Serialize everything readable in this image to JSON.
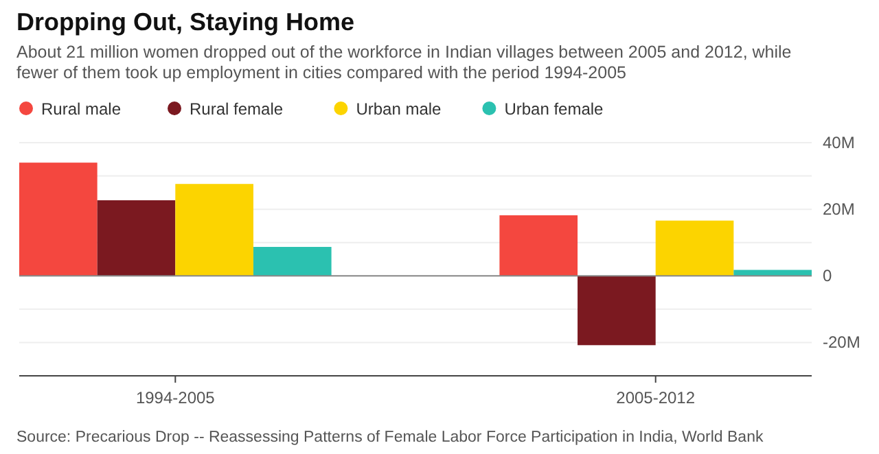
{
  "chart_data": {
    "type": "bar",
    "title": "Dropping Out, Staying Home",
    "subtitle": "About 21 million women dropped out of the workforce in Indian villages between 2005 and 2012, while fewer of them took up employment in cities compared with the period 1994-2005",
    "categories": [
      "1994-2005",
      "2005-2012"
    ],
    "series": [
      {
        "name": "Rural male",
        "color": "#f4473f",
        "values": [
          34,
          18.2
        ]
      },
      {
        "name": "Rural female",
        "color": "#7b1920",
        "values": [
          22.7,
          -20.8
        ]
      },
      {
        "name": "Urban male",
        "color": "#fcd400",
        "values": [
          27.6,
          16.6
        ]
      },
      {
        "name": "Urban female",
        "color": "#2bc1b0",
        "values": [
          8.7,
          1.8
        ]
      }
    ],
    "ylim": [
      -30,
      40
    ],
    "yticks": [
      {
        "value": -30,
        "label": null
      },
      {
        "value": -20,
        "label": "-20M"
      },
      {
        "value": -10,
        "label": null
      },
      {
        "value": 0,
        "label": "0"
      },
      {
        "value": 10,
        "label": null
      },
      {
        "value": 20,
        "label": "20M"
      },
      {
        "value": 30,
        "label": null
      },
      {
        "value": 40,
        "label": "40M"
      }
    ],
    "grid": "y",
    "legend": "top left",
    "annotations": [
      "Source: Precarious Drop -- Reassessing Patterns of Female Labor Force Participation in India, World Bank"
    ]
  }
}
